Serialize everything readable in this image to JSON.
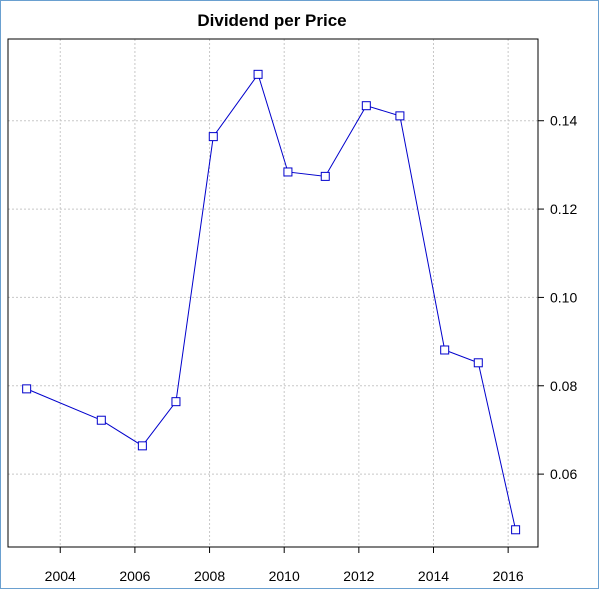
{
  "chart_data": {
    "type": "line",
    "title": "Dividend per Price",
    "x": [
      2003.1,
      2005.1,
      2006.2,
      2007.1,
      2008.1,
      2009.3,
      2010.1,
      2011.1,
      2012.2,
      2013.1,
      2014.3,
      2015.2,
      2016.2
    ],
    "series": [
      {
        "values": [
          0.0793,
          0.0722,
          0.0664,
          0.0764,
          0.1364,
          0.1505,
          0.1284,
          0.1274,
          0.1434,
          0.1411,
          0.0881,
          0.0852,
          0.0474
        ]
      }
    ],
    "x_ticks": [
      "2004",
      "2006",
      "2008",
      "2010",
      "2012",
      "2014",
      "2016"
    ],
    "y_ticks": [
      "0.06",
      "0.08",
      "0.10",
      "0.12",
      "0.14"
    ],
    "xlim": [
      2002.6,
      2016.8
    ],
    "ylim": [
      0.0435,
      0.1585
    ],
    "y_axis_side": "right",
    "grid": true,
    "colors": {
      "line": "#0000cc",
      "grid": "#c8c8c8",
      "frame": "#000000",
      "border": "#6aa0d0"
    }
  }
}
